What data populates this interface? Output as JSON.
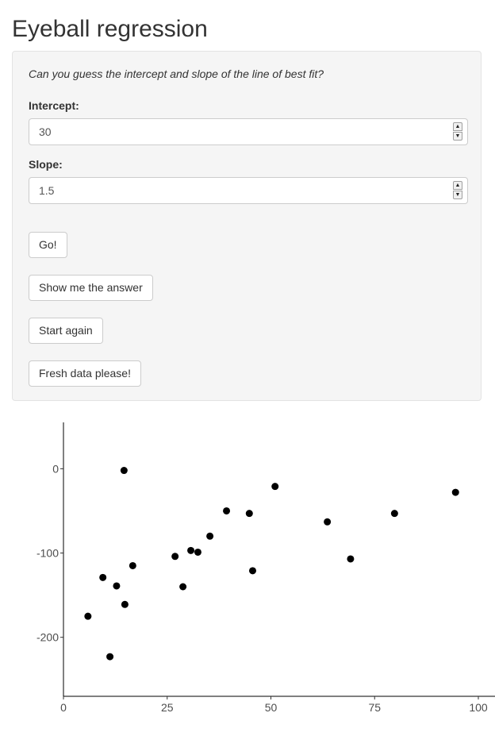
{
  "page": {
    "title": "Eyeball regression"
  },
  "panel": {
    "prompt": "Can you guess the intercept and slope of the line of best fit?",
    "intercept": {
      "label": "Intercept:",
      "value": "30"
    },
    "slope": {
      "label": "Slope:",
      "value": "1.5"
    },
    "buttons": {
      "go": "Go!",
      "show_answer": "Show me the answer",
      "start_again": "Start again",
      "fresh_data": "Fresh data please!"
    },
    "spinner_up_glyph": "▲",
    "spinner_down_glyph": "▼"
  },
  "chart_data": {
    "type": "scatter",
    "title": "",
    "xlabel": "",
    "ylabel": "",
    "xlim": [
      0,
      100
    ],
    "ylim": [
      -270,
      55
    ],
    "x_ticks": [
      0,
      25,
      50,
      75,
      100
    ],
    "x_tick_labels": [
      "0",
      "25",
      "50",
      "75",
      "100"
    ],
    "y_ticks": [
      0,
      -100,
      -200
    ],
    "y_tick_labels": [
      "0",
      "-100",
      "-200"
    ],
    "grid": false,
    "point_color": "#000000",
    "points": [
      {
        "x": 5.9,
        "y": -175
      },
      {
        "x": 9.5,
        "y": -129
      },
      {
        "x": 11.2,
        "y": -223
      },
      {
        "x": 12.8,
        "y": -139
      },
      {
        "x": 14.6,
        "y": -2
      },
      {
        "x": 14.8,
        "y": -161
      },
      {
        "x": 16.7,
        "y": -115
      },
      {
        "x": 26.9,
        "y": -104
      },
      {
        "x": 28.8,
        "y": -140
      },
      {
        "x": 30.7,
        "y": -97
      },
      {
        "x": 32.4,
        "y": -99
      },
      {
        "x": 35.3,
        "y": -80
      },
      {
        "x": 39.3,
        "y": -50
      },
      {
        "x": 44.8,
        "y": -53
      },
      {
        "x": 45.6,
        "y": -121
      },
      {
        "x": 51.0,
        "y": -21
      },
      {
        "x": 63.6,
        "y": -63
      },
      {
        "x": 69.2,
        "y": -107
      },
      {
        "x": 79.8,
        "y": -53
      },
      {
        "x": 94.5,
        "y": -28
      }
    ]
  }
}
